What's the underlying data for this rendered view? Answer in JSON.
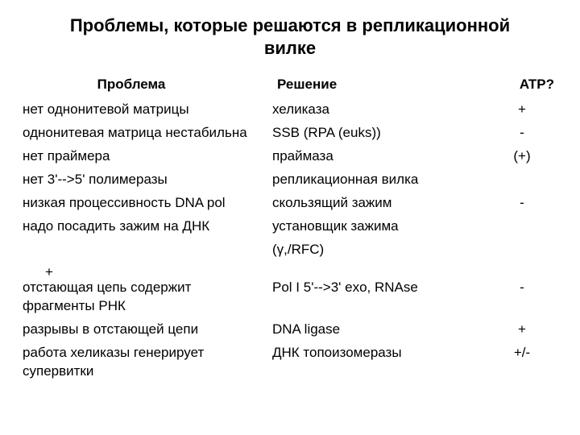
{
  "title_line1": "Проблемы, которые решаются в репликационной",
  "title_line2": "вилке",
  "head": {
    "problem": "Проблема",
    "solution": "Решение",
    "atp": "ATP?"
  },
  "rows": [
    {
      "problem": "нет однонитевой матрицы",
      "solution": "хеликаза",
      "atp": "+"
    },
    {
      "problem": "однонитевая матрица нестабильна",
      "solution": "SSB (RPA (euks))",
      "atp": "-"
    },
    {
      "problem": "нет праймера",
      "solution": "праймаза",
      "atp": "(+)"
    },
    {
      "problem": "нет 3'-->5' полимеразы",
      "solution": "репликационная вилка",
      "atp": ""
    },
    {
      "problem": "низкая процессивность DNA pol",
      "solution": "скользящий зажим",
      "atp": "-"
    },
    {
      "problem": "надо посадить зажим на ДНК",
      "solution": "установщик зажима",
      "atp": ""
    },
    {
      "problem": "",
      "solution": "(γ,/RFC)",
      "atp": ""
    }
  ],
  "extra_plus": "+",
  "rows2": [
    {
      "problem": "отстающая цепь содержит фрагменты РНК",
      "solution": "Pol I 5'-->3' exo, RNAse",
      "atp": "-"
    },
    {
      "problem": "разрывы в отстающей цепи",
      "solution": "DNA ligase",
      "atp": "+"
    },
    {
      "problem": "работа хеликазы генерирует супервитки",
      "solution": "ДНК топоизомеразы",
      "atp": "+/-"
    }
  ]
}
